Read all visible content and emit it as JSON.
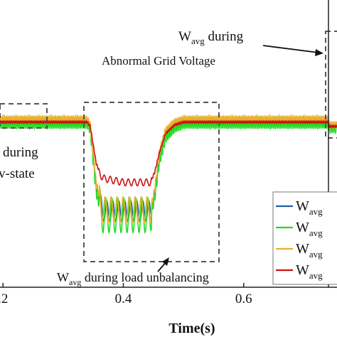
{
  "chart_data": {
    "type": "line",
    "xlabel": "Time(s)",
    "x_ticks": [
      0.2,
      0.4,
      0.6
    ],
    "x_tick_labels": [
      ".2",
      "0.4",
      "0.6"
    ],
    "xlim": [
      0.195,
      0.755
    ],
    "ylim": [
      0.0,
      1.0
    ],
    "series": [
      {
        "color": "#1f5fa8",
        "legend_main": "W",
        "legend_sub": "avg",
        "points": [
          [
            0.195,
            0.575
          ],
          [
            0.34,
            0.575
          ],
          [
            0.345,
            0.555
          ],
          [
            0.355,
            0.35
          ],
          [
            0.365,
            0.265
          ],
          [
            0.4,
            0.265
          ],
          [
            0.445,
            0.265
          ],
          [
            0.452,
            0.33
          ],
          [
            0.46,
            0.46
          ],
          [
            0.47,
            0.53
          ],
          [
            0.485,
            0.56
          ],
          [
            0.5,
            0.575
          ],
          [
            0.74,
            0.575
          ],
          [
            0.742,
            0.56
          ],
          [
            0.755,
            0.56
          ]
        ],
        "ripple": 0.006,
        "dip_ripple": 0.035
      },
      {
        "color": "#22dd22",
        "legend_main": "W",
        "legend_sub": "avg",
        "points": [
          [
            0.195,
            0.57
          ],
          [
            0.34,
            0.57
          ],
          [
            0.345,
            0.55
          ],
          [
            0.355,
            0.33
          ],
          [
            0.365,
            0.25
          ],
          [
            0.4,
            0.25
          ],
          [
            0.445,
            0.25
          ],
          [
            0.452,
            0.31
          ],
          [
            0.46,
            0.44
          ],
          [
            0.47,
            0.52
          ],
          [
            0.485,
            0.555
          ],
          [
            0.5,
            0.57
          ],
          [
            0.74,
            0.57
          ],
          [
            0.742,
            0.555
          ],
          [
            0.755,
            0.555
          ]
        ],
        "ripple": 0.018,
        "dip_ripple": 0.06
      },
      {
        "color": "#e6b030",
        "legend_main": "W",
        "legend_sub": "avg",
        "points": [
          [
            0.195,
            0.585
          ],
          [
            0.34,
            0.585
          ],
          [
            0.345,
            0.565
          ],
          [
            0.355,
            0.36
          ],
          [
            0.365,
            0.27
          ],
          [
            0.4,
            0.27
          ],
          [
            0.445,
            0.27
          ],
          [
            0.452,
            0.34
          ],
          [
            0.46,
            0.47
          ],
          [
            0.47,
            0.545
          ],
          [
            0.485,
            0.575
          ],
          [
            0.5,
            0.585
          ],
          [
            0.74,
            0.585
          ],
          [
            0.742,
            0.565
          ],
          [
            0.755,
            0.565
          ]
        ],
        "ripple": 0.012,
        "dip_ripple": 0.045
      },
      {
        "color": "#cc1111",
        "legend_main": "W",
        "legend_sub": "avg",
        "points": [
          [
            0.195,
            0.575
          ],
          [
            0.34,
            0.575
          ],
          [
            0.345,
            0.56
          ],
          [
            0.355,
            0.43
          ],
          [
            0.365,
            0.38
          ],
          [
            0.4,
            0.365
          ],
          [
            0.445,
            0.365
          ],
          [
            0.452,
            0.4
          ],
          [
            0.46,
            0.47
          ],
          [
            0.47,
            0.535
          ],
          [
            0.485,
            0.565
          ],
          [
            0.5,
            0.575
          ],
          [
            0.74,
            0.575
          ],
          [
            0.742,
            0.56
          ],
          [
            0.755,
            0.56
          ]
        ],
        "ripple": 0.004,
        "dip_ripple": 0.012
      }
    ],
    "annotations": [
      {
        "main": "W",
        "sub": "avg",
        "rest": " during",
        "line2": "Abnormal Grid Voltage"
      },
      {
        "main": "W",
        "sub": "avg",
        "rest": " during load unbalancing"
      },
      {
        "text1": "during",
        "text2": "v-state"
      }
    ],
    "legend_position": "right"
  }
}
